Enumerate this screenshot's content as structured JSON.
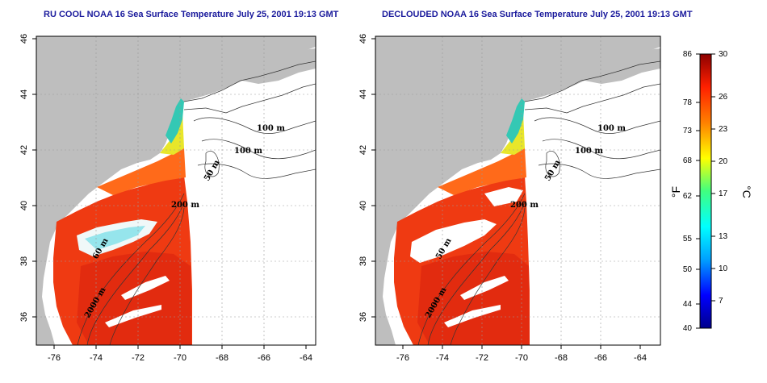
{
  "left_map": {
    "title": "RU COOL NOAA 16 Sea Surface Temperature July 25, 2001 19:13 GMT",
    "contour_labels": [
      "100 m",
      "100 m",
      "50 m",
      "200 m",
      "60 m",
      "2000 m"
    ]
  },
  "right_map": {
    "title": "DECLOUDED NOAA 16 Sea Surface Temperature July 25, 2001 19:13 GMT",
    "contour_labels": [
      "100 m",
      "100 m",
      "50 m",
      "200 m",
      "50 m",
      "2000 m"
    ]
  },
  "axes": {
    "lon_ticks": [
      "-76",
      "-74",
      "-72",
      "-70",
      "-68",
      "-66",
      "-64"
    ],
    "lat_ticks": [
      "46",
      "44",
      "42",
      "40",
      "38",
      "36"
    ]
  },
  "colorbar": {
    "fahrenheit_ticks": [
      "86",
      "78",
      "73",
      "68",
      "62",
      "55",
      "50",
      "44",
      "40"
    ],
    "celsius_ticks": [
      "30",
      "26",
      "23",
      "20",
      "17",
      "13",
      "10",
      "7"
    ],
    "fahrenheit_unit": "°F",
    "celsius_unit": "°C"
  },
  "colors": {
    "land": "#bebebe",
    "no_data": "#ffffff",
    "title": "#1a1a9c"
  }
}
